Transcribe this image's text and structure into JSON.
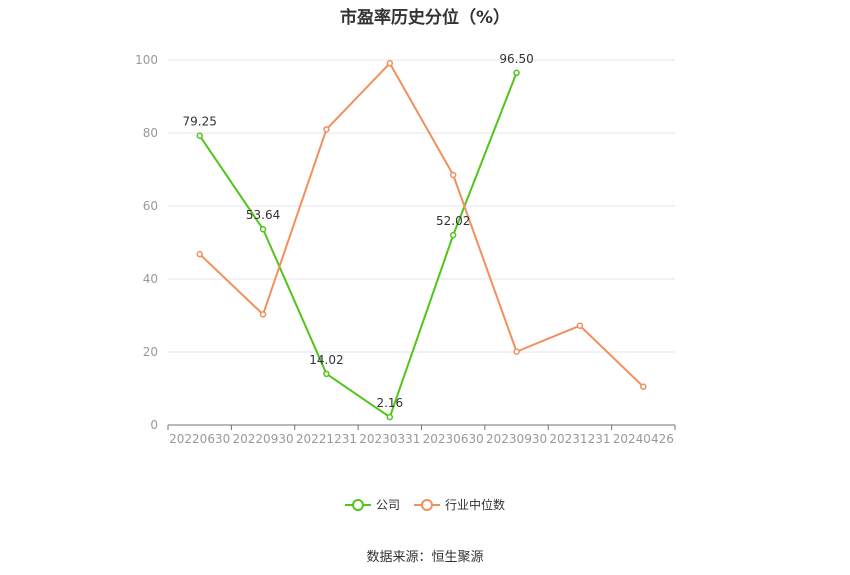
{
  "title": "市盈率历史分位（%）",
  "source": "数据来源：恒生聚源",
  "chart_data": {
    "type": "line",
    "title": "市盈率历史分位（%）",
    "categories": [
      "20220630",
      "20220930",
      "20221231",
      "20230331",
      "20230630",
      "20230930",
      "20231231",
      "20240426"
    ],
    "ylim": [
      0,
      100
    ],
    "yticks": [
      0,
      20,
      40,
      60,
      80,
      100
    ],
    "grid": true,
    "legend_position": "bottom",
    "series": [
      {
        "name": "公司",
        "color": "#52c41a",
        "values": [
          79.25,
          53.64,
          14.02,
          2.16,
          52.02,
          96.5,
          null,
          null
        ],
        "labels": [
          "79.25",
          "53.64",
          "14.02",
          "2.16",
          "52.02",
          "96.50",
          null,
          null
        ]
      },
      {
        "name": "行业中位数",
        "color": "#f0905e",
        "values": [
          46.8,
          30.3,
          81.0,
          99.1,
          68.5,
          20.1,
          27.2,
          10.5
        ],
        "labels": [
          null,
          null,
          null,
          null,
          null,
          null,
          null,
          null
        ]
      }
    ]
  }
}
